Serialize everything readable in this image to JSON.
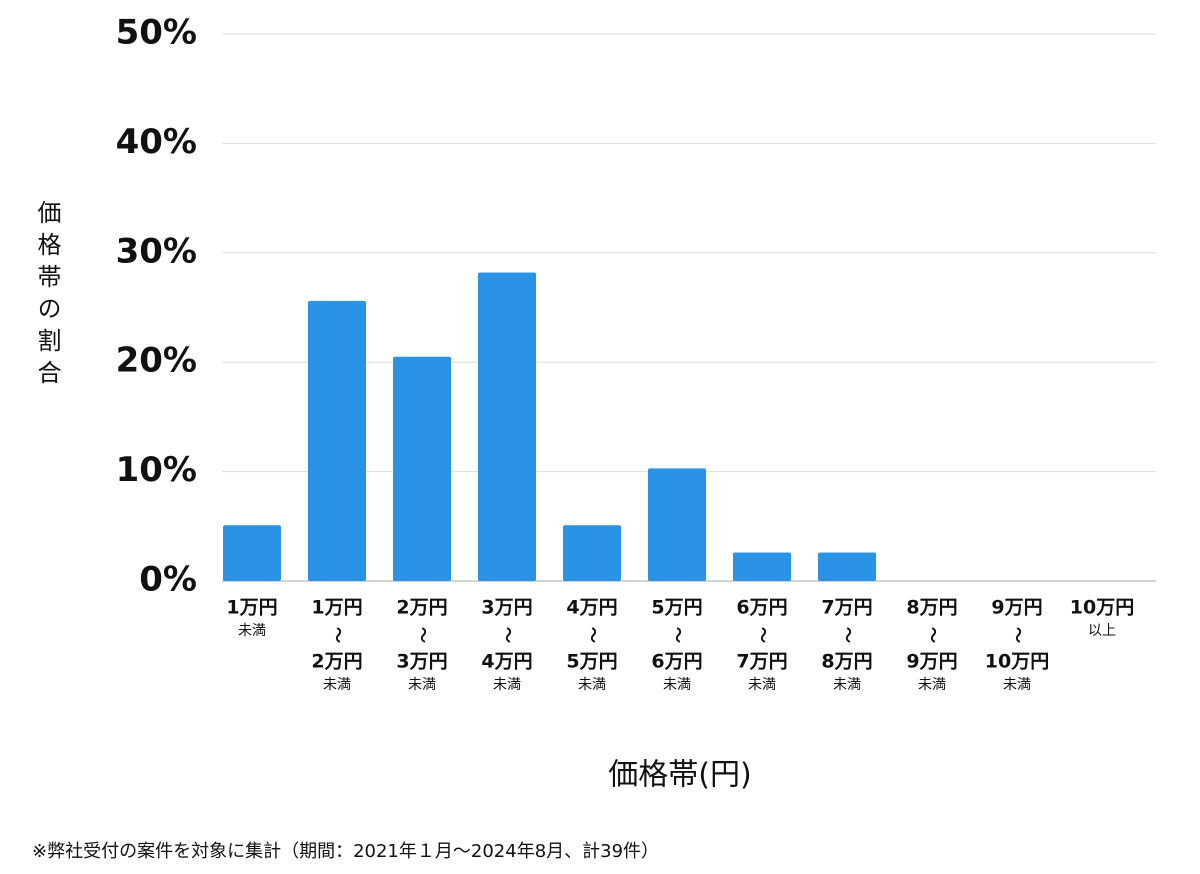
{
  "chart_data": {
    "type": "bar",
    "y_label": "価格帯の割合",
    "x_label": "価格帯(円)",
    "note": "※弊社受付の案件を対象に集計（期間：2021年１月～2024年8月、計39件）",
    "categories": [
      [
        "1万円",
        "未満"
      ],
      [
        "1万円",
        "〜",
        "2万円",
        "未満"
      ],
      [
        "2万円",
        "〜",
        "3万円",
        "未満"
      ],
      [
        "3万円",
        "〜",
        "4万円",
        "未満"
      ],
      [
        "4万円",
        "〜",
        "5万円",
        "未満"
      ],
      [
        "5万円",
        "〜",
        "6万円",
        "未満"
      ],
      [
        "6万円",
        "〜",
        "7万円",
        "未満"
      ],
      [
        "7万円",
        "〜",
        "8万円",
        "未満"
      ],
      [
        "8万円",
        "〜",
        "9万円",
        "未満"
      ],
      [
        "9万円",
        "〜",
        "10万円",
        "未満"
      ],
      [
        "10万円",
        "以上"
      ]
    ],
    "values": [
      5.1,
      25.6,
      20.5,
      28.2,
      5.1,
      10.3,
      2.6,
      2.6,
      0,
      0,
      0
    ],
    "color": "#2b93e6",
    "ylim": [
      0,
      50
    ],
    "yticks": [
      {
        "value": 0,
        "label": "0%"
      },
      {
        "value": 10,
        "label": "10%"
      },
      {
        "value": 20,
        "label": "20%"
      },
      {
        "value": 30,
        "label": "30%"
      },
      {
        "value": 40,
        "label": "40%"
      },
      {
        "value": 50,
        "label": "50%"
      }
    ],
    "grid": true
  }
}
